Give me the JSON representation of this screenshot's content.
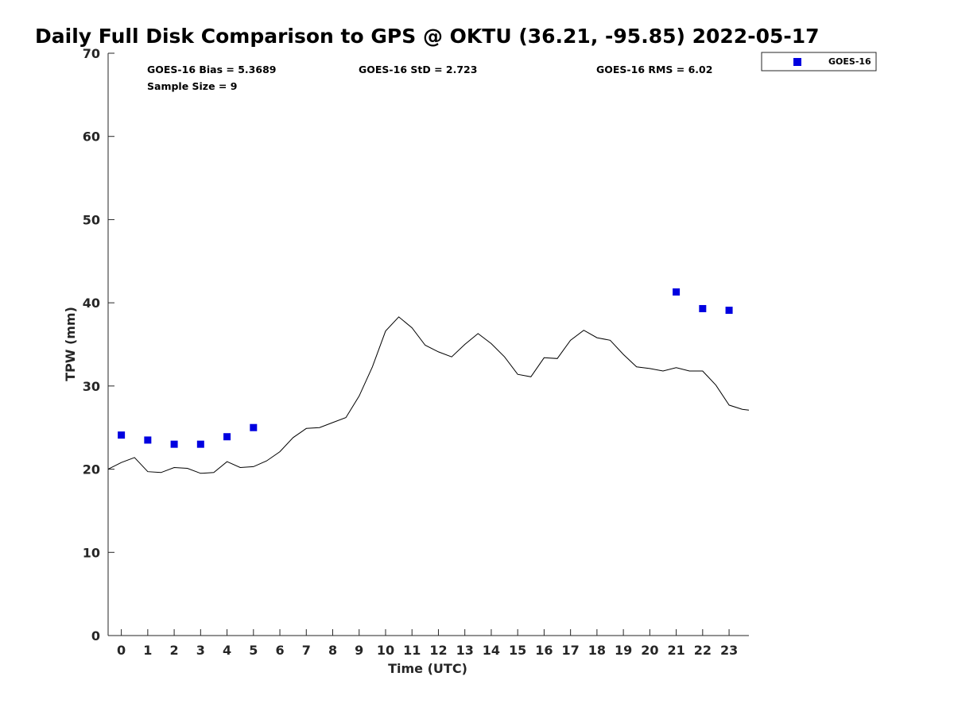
{
  "chart_data": {
    "type": "scatter",
    "title": "Daily Full Disk Comparison to GPS @ OKTU (36.21, -95.85) 2022-05-17",
    "xlabel": "Time (UTC)",
    "ylabel": "TPW (mm)",
    "xlim": [
      -0.5,
      23.75
    ],
    "ylim": [
      0,
      70
    ],
    "xticks": [
      0,
      1,
      2,
      3,
      4,
      5,
      6,
      7,
      8,
      9,
      10,
      11,
      12,
      13,
      14,
      15,
      16,
      17,
      18,
      19,
      20,
      21,
      22,
      23
    ],
    "yticks": [
      0,
      10,
      20,
      30,
      40,
      50,
      60,
      70
    ],
    "grid": false,
    "legend_position": "top-right-outside",
    "stats": {
      "bias": "GOES-16 Bias = 5.3689",
      "std": "GOES-16 StD = 2.723",
      "rms": "GOES-16 RMS = 6.02",
      "sample": "Sample Size = 9"
    },
    "series": [
      {
        "name": "GOES-16",
        "kind": "marker",
        "color": "#0000e0",
        "x": [
          0,
          1,
          2,
          3,
          4,
          5,
          21,
          22,
          23
        ],
        "y": [
          24.1,
          23.5,
          23.0,
          23.0,
          23.9,
          25.0,
          41.3,
          39.3,
          39.1
        ]
      },
      {
        "name": "",
        "kind": "line",
        "color": "#000000",
        "x": [
          -0.5,
          -0.0,
          0.5,
          1.0,
          1.5,
          2.0,
          2.5,
          3.0,
          3.5,
          4.0,
          4.5,
          5.0,
          5.5,
          6.0,
          6.5,
          7.0,
          7.5,
          8.0,
          8.5,
          9.0,
          9.5,
          10.0,
          10.5,
          11.0,
          11.5,
          12.0,
          12.5,
          13.0,
          13.5,
          14.0,
          14.5,
          15.0,
          15.5,
          16.0,
          16.5,
          17.0,
          17.5,
          18.0,
          18.5,
          19.0,
          19.5,
          20.0,
          20.5,
          21.0,
          21.5,
          22.0,
          22.5,
          23.0,
          23.5,
          23.75
        ],
        "y": [
          20.0,
          20.8,
          21.4,
          19.7,
          19.6,
          20.2,
          20.1,
          19.5,
          19.6,
          20.9,
          20.2,
          20.3,
          21.0,
          22.1,
          23.8,
          24.9,
          25.0,
          25.6,
          26.2,
          28.8,
          32.3,
          36.6,
          38.3,
          37.0,
          34.9,
          34.1,
          33.5,
          35.0,
          36.3,
          35.1,
          33.5,
          31.4,
          31.1,
          33.4,
          33.3,
          35.5,
          36.7,
          35.8,
          35.5,
          33.8,
          32.3,
          32.1,
          31.8,
          32.2,
          31.8,
          31.8,
          30.1,
          27.7,
          27.2,
          27.1
        ]
      }
    ]
  }
}
